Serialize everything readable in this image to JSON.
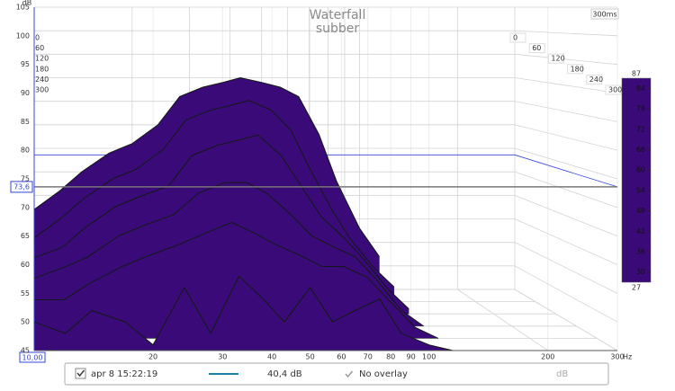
{
  "chart_data": {
    "type": "waterfall",
    "title": "Waterfall",
    "subtitle": "subber",
    "window_label": "300ms",
    "y_label": "dB",
    "x_label": "Hz",
    "x": [
      10,
      12,
      14,
      17,
      20,
      24,
      28,
      33,
      38,
      43,
      50,
      57,
      65,
      75,
      85,
      100,
      115
    ],
    "slices": [
      {
        "time": 0,
        "values": [
          62,
          66,
          70,
          74,
          76,
          80,
          86,
          88,
          89,
          90,
          89,
          88,
          86,
          78,
          68,
          58,
          52
        ]
      },
      {
        "time": 60,
        "values": [
          58,
          62,
          66,
          70,
          72,
          76,
          82,
          84,
          85,
          86,
          84,
          80,
          72,
          64,
          58,
          52,
          48
        ]
      },
      {
        "time": 120,
        "values": [
          56,
          58,
          62,
          66,
          68,
          70,
          76,
          78,
          79,
          80,
          76,
          70,
          64,
          60,
          56,
          50,
          46
        ]
      },
      {
        "time": 180,
        "values": [
          54,
          56,
          58,
          62,
          64,
          66,
          70,
          72,
          72,
          70,
          66,
          62,
          60,
          58,
          54,
          48,
          45
        ]
      },
      {
        "time": 240,
        "values": [
          52,
          52,
          55,
          58,
          60,
          62,
          64,
          66,
          64,
          62,
          60,
          58,
          58,
          56,
          52,
          47,
          45
        ]
      },
      {
        "time": 300,
        "values": [
          50,
          48,
          52,
          50,
          46,
          56,
          48,
          58,
          54,
          50,
          56,
          50,
          52,
          54,
          48,
          46,
          45
        ]
      }
    ],
    "xlim": [
      10,
      300
    ],
    "xticks": [
      20,
      30,
      40,
      50,
      60,
      70,
      80,
      90,
      100,
      200,
      300
    ],
    "log_x": true,
    "ylim": [
      45,
      105
    ],
    "yticks": [
      45,
      50,
      55,
      60,
      65,
      70,
      75,
      80,
      85,
      90,
      95,
      100,
      105
    ],
    "zlim": [
      0,
      300
    ],
    "zticks": [
      0,
      60,
      120,
      180,
      240,
      300
    ],
    "clim": [
      27,
      87
    ],
    "cticks": [
      30,
      36,
      42,
      48,
      54,
      60,
      66,
      72,
      78,
      84
    ],
    "clim_labels": [
      "27",
      "87"
    ],
    "colormap": [
      "#3a0a78",
      "#1f3fa8",
      "#1c9cb4",
      "#22ad5a",
      "#5cbc2a",
      "#c8d21e",
      "#f2b01a",
      "#ee6a14",
      "#e41a10"
    ],
    "cursor_y": {
      "value": 73.6,
      "label": "73,6"
    },
    "cursor_x": {
      "value": 10,
      "label": "10,00"
    },
    "cursor_color": "#3344dd",
    "grid": true
  },
  "footer": {
    "measurement": "apr 8 15:22:19",
    "level": "40,4 dB",
    "overlay": "No overlay",
    "unit": "dB",
    "trace_color": "#1a7fa0"
  }
}
